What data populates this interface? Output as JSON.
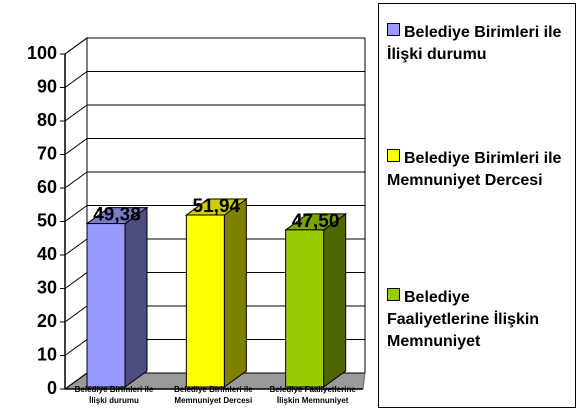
{
  "chart_data": {
    "type": "bar3d",
    "categories": [
      "Belediye Birimleri ile İlişki durumu",
      "Belediye Birimleri ile Memnuniyet Dercesi",
      "Belediye Faaliyetlerine İlişkin Memnuniyet"
    ],
    "values": [
      49.38,
      51.94,
      47.5
    ],
    "value_labels": [
      "49,38",
      "51,94",
      "47,50"
    ],
    "colors": [
      "#9999ff",
      "#ffff00",
      "#99cc00"
    ],
    "ylim": [
      0,
      100
    ],
    "yticks": [
      0,
      10,
      20,
      30,
      40,
      50,
      60,
      70,
      80,
      90,
      100
    ],
    "grid": true,
    "legend": "right"
  }
}
